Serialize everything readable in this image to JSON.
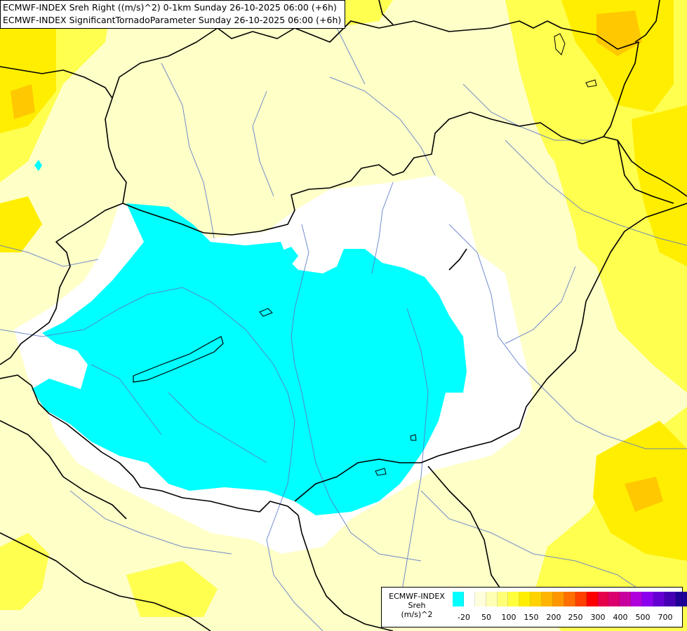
{
  "map": {
    "title_line_1": "ECMWF-INDEX Sreh Right ((m/s)^2) 0-1km Sunday 26-10-2025 06:00 (+6h)",
    "title_line_2": "ECMWF-INDEX SignificantTornadoParameter Sunday 26-10-2025 06:00 (+6h)",
    "fill_colors": {
      "below_minus_20": "#00ffff",
      "minus_20_to_0": "#ffffff",
      "low_positive": "#ffffc8",
      "mid_positive": "#ffffa0",
      "higher_positive": "#ffff50",
      "strong_positive": "#ffee00",
      "very_strong": "#ffc800"
    },
    "line_colors": {
      "borders": "#000000",
      "rivers": "#5a78c8"
    }
  },
  "legend": {
    "label_line_1": "ECMWF-INDEX",
    "label_line_2": "Sreh",
    "label_line_3": "(m/s)^2",
    "swatch_colors": [
      "#00ffff",
      "#ffffff",
      "#ffffdc",
      "#ffffb4",
      "#ffff78",
      "#ffff3c",
      "#ffee00",
      "#ffd200",
      "#ffb400",
      "#ff9600",
      "#ff6e00",
      "#ff4000",
      "#ff0000",
      "#e6004a",
      "#dc006e",
      "#c800a0",
      "#b000dc",
      "#8c00f0",
      "#6400d2",
      "#4600b4",
      "#1e0096",
      "#000080"
    ],
    "tick_labels": [
      "-20",
      "50",
      "100",
      "150",
      "200",
      "250",
      "300",
      "400",
      "500",
      "700"
    ]
  }
}
